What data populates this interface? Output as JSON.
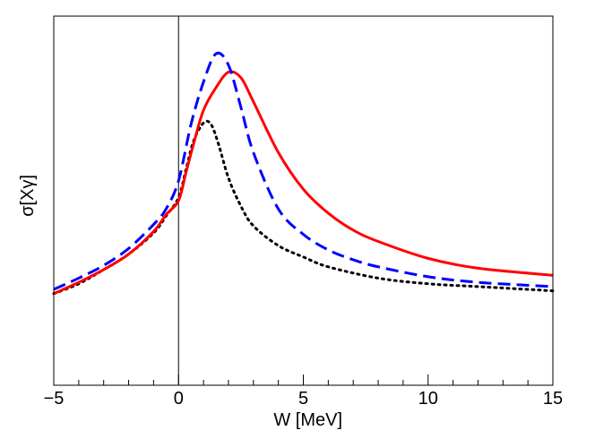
{
  "chart_data": {
    "type": "line",
    "title": "",
    "xlabel": "W [MeV]",
    "ylabel": "σ[Xγ]",
    "xlim": [
      -5,
      15
    ],
    "ylim": [
      0,
      1
    ],
    "y_ticks_labeled": false,
    "x_ticks": [
      {
        "value": -5,
        "label": "−5"
      },
      {
        "value": 0,
        "label": "0"
      },
      {
        "value": 5,
        "label": "5"
      },
      {
        "value": 10,
        "label": "10"
      },
      {
        "value": 15,
        "label": "15"
      }
    ],
    "x_minor_step": 1,
    "reference_lines": [
      {
        "orientation": "vertical",
        "x": 0,
        "color": "#000000"
      }
    ],
    "series": [
      {
        "name": "solid",
        "style": "solid",
        "color": "#ff0000",
        "x": [
          -5,
          -4,
          -3,
          -2,
          -1,
          -0.5,
          0,
          0.3,
          0.6,
          1,
          1.5,
          2,
          2.5,
          3,
          4,
          5,
          6,
          7,
          8,
          10,
          12,
          15
        ],
        "y": [
          0.15,
          0.19,
          0.235,
          0.29,
          0.37,
          0.43,
          0.48,
          0.58,
          0.68,
          0.8,
          0.88,
          0.935,
          0.915,
          0.83,
          0.65,
          0.52,
          0.435,
          0.375,
          0.335,
          0.275,
          0.24,
          0.215
        ]
      },
      {
        "name": "dashed",
        "style": "dashed",
        "color": "#0000ff",
        "x": [
          -5,
          -4,
          -3,
          -2,
          -1,
          -0.5,
          0,
          0.5,
          1,
          1.5,
          2,
          2.5,
          3,
          4,
          5,
          6,
          7,
          8,
          10,
          12,
          15
        ],
        "y": [
          0.165,
          0.205,
          0.25,
          0.31,
          0.395,
          0.45,
          0.55,
          0.75,
          0.9,
          1.0,
          0.96,
          0.81,
          0.65,
          0.45,
          0.36,
          0.305,
          0.27,
          0.245,
          0.21,
          0.19,
          0.175
        ]
      },
      {
        "name": "dotted",
        "style": "dotted",
        "color": "#000000",
        "x": [
          -5,
          -4,
          -3,
          -2,
          -1,
          -0.5,
          0,
          0.3,
          0.6,
          1,
          1.3,
          1.6,
          2,
          2.5,
          3,
          4,
          5,
          6,
          8,
          10,
          12,
          15
        ],
        "y": [
          0.15,
          0.185,
          0.235,
          0.29,
          0.365,
          0.425,
          0.49,
          0.59,
          0.69,
          0.755,
          0.75,
          0.68,
          0.56,
          0.46,
          0.39,
          0.32,
          0.28,
          0.245,
          0.205,
          0.185,
          0.175,
          0.16
        ]
      }
    ]
  }
}
